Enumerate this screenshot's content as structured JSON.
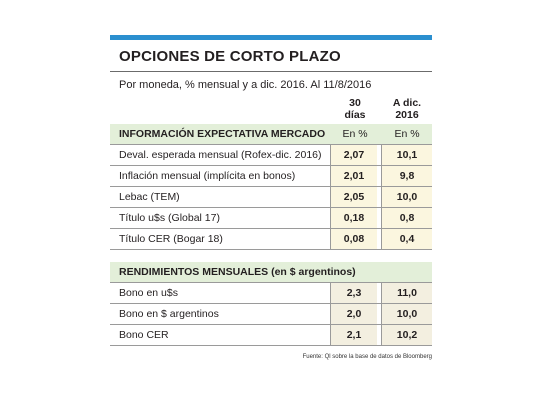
{
  "title": "OPCIONES DE CORTO PLAZO",
  "subtitle": "Por moneda, % mensual y a dic. 2016. Al 11/8/2016",
  "columns": {
    "col1_line1": "30",
    "col1_line2": "días",
    "col2_line1": "A dic.",
    "col2_line2": "2016"
  },
  "section1": {
    "header": "INFORMACIÓN EXPECTATIVA MERCADO",
    "unit1": "En %",
    "unit2": "En %",
    "rows": [
      {
        "label": "Deval. esperada mensual (Rofex-dic. 2016)",
        "v1": "2,07",
        "v2": "10,1"
      },
      {
        "label": "Inflación mensual (implícita en  bonos)",
        "v1": "2,01",
        "v2": "9,8"
      },
      {
        "label": "Lebac (TEM)",
        "v1": "2,05",
        "v2": "10,0"
      },
      {
        "label": "Título u$s (Global 17)",
        "v1": "0,18",
        "v2": "0,8"
      },
      {
        "label": "Título CER (Bogar 18)",
        "v1": "0,08",
        "v2": "0,4"
      }
    ]
  },
  "section2": {
    "header": "RENDIMIENTOS MENSUALES (en $ argentinos)",
    "rows": [
      {
        "label": "Bono en u$s",
        "v1": "2,3",
        "v2": "11,0"
      },
      {
        "label": "Bono en $ argentinos",
        "v1": "2,0",
        "v2": "10,0"
      },
      {
        "label": "Bono CER",
        "v1": "2,1",
        "v2": "10,2"
      }
    ]
  },
  "source": "Fuente: Ql sobre la base de datos de Bloomberg",
  "colors": {
    "accent": "#2b8fcf",
    "header_green": "#e3efd9",
    "cell_yellow": "#fbf6df"
  }
}
